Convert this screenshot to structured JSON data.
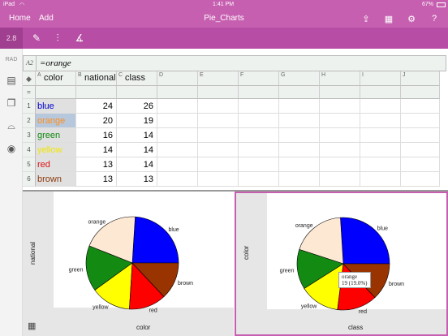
{
  "status": {
    "device": "iPad",
    "wifi": "wifi-icon",
    "time": "1:41 PM",
    "battery": "67%"
  },
  "nav": {
    "home": "Home",
    "add": "Add",
    "title": "Pie_Charts"
  },
  "toolbar": {
    "version": "2.8"
  },
  "leftbar": {
    "rad": "RAD"
  },
  "formula": {
    "ref": "A2",
    "value": "=orange"
  },
  "columns": [
    {
      "letter": "A",
      "name": "color"
    },
    {
      "letter": "B",
      "name": "national"
    },
    {
      "letter": "C",
      "name": "class"
    },
    {
      "letter": "D",
      "name": ""
    },
    {
      "letter": "E",
      "name": ""
    },
    {
      "letter": "F",
      "name": ""
    },
    {
      "letter": "G",
      "name": ""
    },
    {
      "letter": "H",
      "name": ""
    },
    {
      "letter": "I",
      "name": ""
    },
    {
      "letter": "J",
      "name": ""
    }
  ],
  "rows": [
    {
      "n": "1",
      "color": "blue",
      "national": "24",
      "class": "26",
      "hex": "#0000cc"
    },
    {
      "n": "2",
      "color": "orange",
      "national": "20",
      "class": "19",
      "hex": "#ff8c1a"
    },
    {
      "n": "3",
      "color": "green",
      "national": "16",
      "class": "14",
      "hex": "#118811"
    },
    {
      "n": "4",
      "color": "yellow",
      "national": "14",
      "class": "14",
      "hex": "#f2e600"
    },
    {
      "n": "5",
      "color": "red",
      "national": "13",
      "class": "14",
      "hex": "#dd1111"
    },
    {
      "n": "6",
      "color": "brown",
      "national": "13",
      "class": "13",
      "hex": "#8b3a0f"
    }
  ],
  "chart_data": [
    {
      "type": "pie",
      "xlabel": "color",
      "ylabel": "national",
      "categories": [
        "blue",
        "orange",
        "green",
        "yellow",
        "red",
        "brown"
      ],
      "values": [
        24,
        20,
        16,
        14,
        13,
        13
      ],
      "colors": [
        "#0000ff",
        "#fde8d4",
        "#138b13",
        "#ffff00",
        "#ff0000",
        "#993300"
      ]
    },
    {
      "type": "pie",
      "xlabel": "class",
      "ylabel": "color",
      "categories": [
        "blue",
        "orange",
        "green",
        "yellow",
        "red",
        "brown"
      ],
      "values": [
        26,
        19,
        14,
        14,
        14,
        13
      ],
      "colors": [
        "#0000ff",
        "#fde8d4",
        "#138b13",
        "#ffff00",
        "#ff0000",
        "#993300"
      ],
      "tooltip": {
        "label": "orange",
        "value": "19 (19.0%)"
      }
    }
  ],
  "accent": "#c65fb0"
}
